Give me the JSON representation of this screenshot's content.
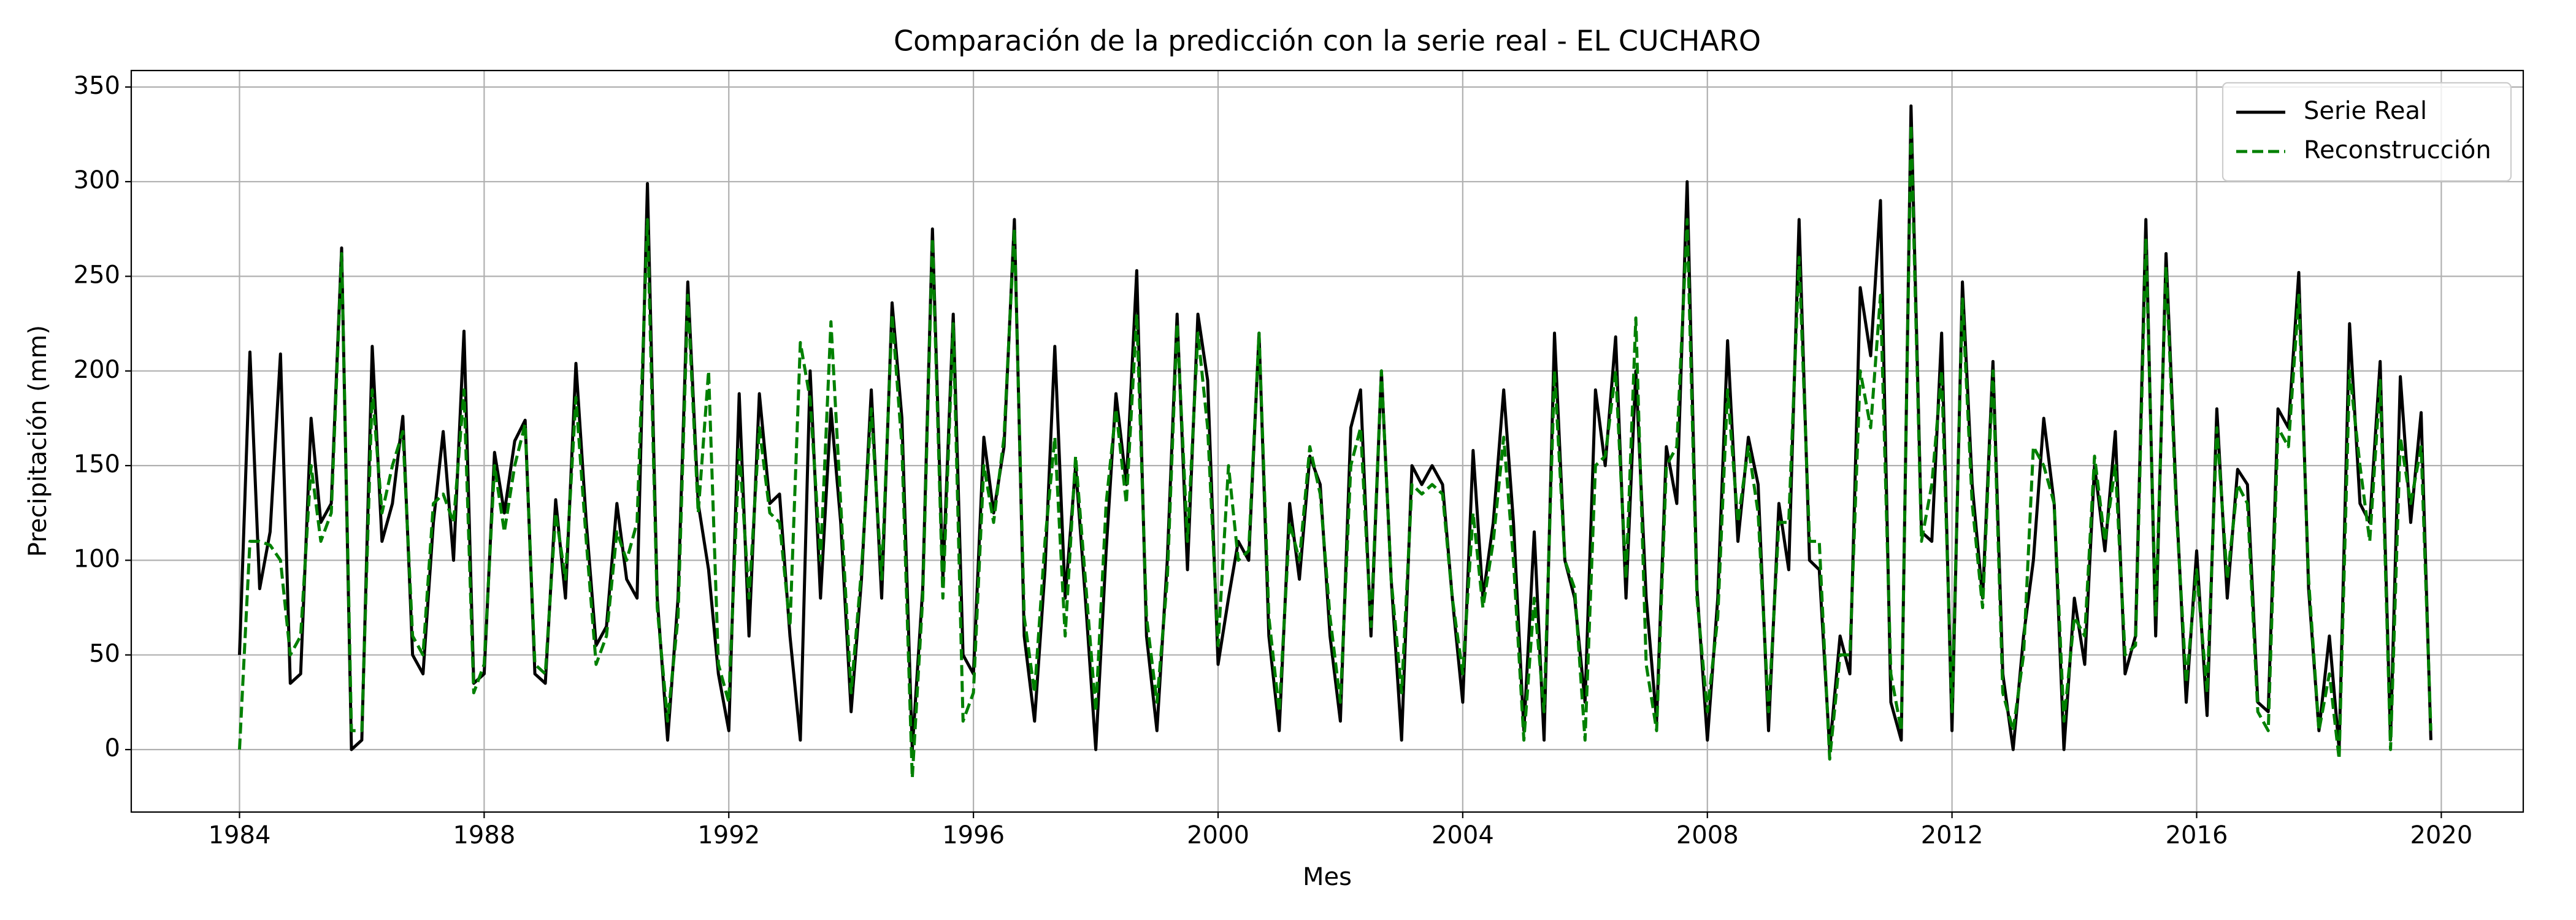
{
  "chart_data": {
    "type": "line",
    "title": "Comparación de la predicción con la serie real - EL CUCHARO",
    "x_label": "Mes",
    "y_label": "Precipitación (mm)",
    "xlim": [
      1982.23,
      2021.34
    ],
    "ylim": [
      -33,
      358.7
    ],
    "xticks": [
      1984,
      1988,
      1992,
      1996,
      2000,
      2004,
      2008,
      2012,
      2016,
      2020
    ],
    "yticks": [
      0,
      50,
      100,
      150,
      200,
      250,
      300,
      350
    ],
    "grid": true,
    "legend_loc": "upper right",
    "x": [
      1984,
      1984.17,
      1984.33,
      1984.5,
      1984.67,
      1984.83,
      1985,
      1985.17,
      1985.33,
      1985.5,
      1985.67,
      1985.83,
      1986,
      1986.17,
      1986.33,
      1986.5,
      1986.67,
      1986.83,
      1987,
      1987.17,
      1987.33,
      1987.5,
      1987.67,
      1987.83,
      1988,
      1988.17,
      1988.33,
      1988.5,
      1988.67,
      1988.83,
      1989,
      1989.17,
      1989.33,
      1989.5,
      1989.67,
      1989.83,
      1990,
      1990.17,
      1990.33,
      1990.5,
      1990.67,
      1990.83,
      1991,
      1991.17,
      1991.33,
      1991.5,
      1991.67,
      1991.83,
      1992,
      1992.17,
      1992.33,
      1992.5,
      1992.67,
      1992.83,
      1993,
      1993.17,
      1993.33,
      1993.5,
      1993.67,
      1993.83,
      1994,
      1994.17,
      1994.33,
      1994.5,
      1994.67,
      1994.83,
      1995,
      1995.17,
      1995.33,
      1995.5,
      1995.67,
      1995.83,
      1996,
      1996.17,
      1996.33,
      1996.5,
      1996.67,
      1996.83,
      1997,
      1997.17,
      1997.33,
      1997.5,
      1997.67,
      1997.83,
      1998,
      1998.17,
      1998.33,
      1998.5,
      1998.67,
      1998.83,
      1999,
      1999.17,
      1999.33,
      1999.5,
      1999.67,
      1999.83,
      2000,
      2000.17,
      2000.33,
      2000.5,
      2000.67,
      2000.83,
      2001,
      2001.17,
      2001.33,
      2001.5,
      2001.67,
      2001.83,
      2002,
      2002.17,
      2002.33,
      2002.5,
      2002.67,
      2002.83,
      2003,
      2003.17,
      2003.33,
      2003.5,
      2003.67,
      2003.83,
      2004,
      2004.17,
      2004.33,
      2004.5,
      2004.67,
      2004.83,
      2005,
      2005.17,
      2005.33,
      2005.5,
      2005.67,
      2005.83,
      2006,
      2006.17,
      2006.33,
      2006.5,
      2006.67,
      2006.83,
      2007,
      2007.17,
      2007.33,
      2007.5,
      2007.67,
      2007.83,
      2008,
      2008.17,
      2008.33,
      2008.5,
      2008.67,
      2008.83,
      2009,
      2009.17,
      2009.33,
      2009.5,
      2009.67,
      2009.83,
      2010,
      2010.17,
      2010.33,
      2010.5,
      2010.67,
      2010.83,
      2011,
      2011.17,
      2011.33,
      2011.5,
      2011.67,
      2011.83,
      2012,
      2012.17,
      2012.33,
      2012.5,
      2012.67,
      2012.83,
      2013,
      2013.17,
      2013.33,
      2013.5,
      2013.67,
      2013.83,
      2014,
      2014.17,
      2014.33,
      2014.5,
      2014.67,
      2014.83,
      2015,
      2015.17,
      2015.33,
      2015.5,
      2015.67,
      2015.83,
      2016,
      2016.17,
      2016.33,
      2016.5,
      2016.67,
      2016.83,
      2017,
      2017.17,
      2017.33,
      2017.5,
      2017.67,
      2017.83,
      2018,
      2018.17,
      2018.33,
      2018.5,
      2018.67,
      2018.83,
      2019,
      2019.17,
      2019.33,
      2019.5,
      2019.67,
      2019.83
    ],
    "series": [
      {
        "name": "Serie Real",
        "color": "#000000",
        "dashed": false,
        "values": [
          50,
          210,
          85,
          115,
          209,
          35,
          40,
          175,
          120,
          130,
          265,
          0,
          5,
          213,
          110,
          130,
          176,
          50,
          40,
          120,
          168,
          100,
          221,
          35,
          40,
          157,
          125,
          163,
          174,
          40,
          35,
          132,
          80,
          204,
          120,
          55,
          65,
          130,
          90,
          80,
          299,
          80,
          5,
          80,
          247,
          130,
          95,
          40,
          10,
          188,
          60,
          188,
          130,
          135,
          60,
          5,
          200,
          80,
          180,
          120,
          20,
          90,
          190,
          80,
          236,
          175,
          0,
          85,
          275,
          90,
          230,
          50,
          40,
          165,
          125,
          160,
          280,
          60,
          15,
          95,
          213,
          80,
          150,
          80,
          0,
          105,
          188,
          140,
          253,
          60,
          10,
          100,
          230,
          95,
          230,
          195,
          45,
          80,
          110,
          100,
          220,
          60,
          10,
          130,
          90,
          155,
          140,
          60,
          15,
          170,
          190,
          60,
          200,
          90,
          5,
          150,
          140,
          150,
          140,
          80,
          25,
          158,
          80,
          120,
          190,
          120,
          10,
          115,
          5,
          220,
          100,
          80,
          25,
          190,
          150,
          218,
          80,
          200,
          80,
          15,
          160,
          130,
          300,
          85,
          5,
          80,
          216,
          110,
          165,
          140,
          10,
          130,
          95,
          280,
          100,
          95,
          0,
          60,
          40,
          244,
          208,
          290,
          25,
          5,
          340,
          115,
          110,
          220,
          10,
          247,
          140,
          80,
          205,
          40,
          0,
          60,
          100,
          175,
          130,
          0,
          80,
          45,
          150,
          105,
          168,
          40,
          60,
          280,
          60,
          262,
          130,
          25,
          105,
          18,
          180,
          80,
          148,
          140,
          25,
          20,
          180,
          170,
          252,
          85,
          10,
          60,
          0,
          225,
          130,
          120,
          205,
          5,
          197,
          120,
          178,
          5
        ]
      },
      {
        "name": "Reconstrucción",
        "color": "#008000",
        "dashed": true,
        "values": [
          0,
          110,
          110,
          108,
          100,
          50,
          60,
          150,
          110,
          125,
          262,
          10,
          10,
          190,
          125,
          150,
          168,
          60,
          50,
          130,
          135,
          120,
          190,
          30,
          45,
          150,
          115,
          150,
          172,
          45,
          40,
          125,
          90,
          186,
          110,
          45,
          60,
          115,
          100,
          120,
          280,
          75,
          15,
          70,
          240,
          125,
          200,
          45,
          25,
          160,
          80,
          170,
          125,
          120,
          65,
          215,
          185,
          100,
          226,
          130,
          30,
          95,
          180,
          90,
          230,
          160,
          -15,
          80,
          270,
          80,
          225,
          15,
          30,
          150,
          120,
          165,
          275,
          70,
          30,
          110,
          165,
          60,
          155,
          90,
          20,
          130,
          180,
          130,
          230,
          70,
          25,
          90,
          225,
          110,
          220,
          170,
          55,
          150,
          100,
          105,
          220,
          70,
          20,
          120,
          100,
          160,
          135,
          70,
          25,
          150,
          170,
          65,
          200,
          90,
          30,
          140,
          135,
          140,
          135,
          80,
          40,
          125,
          75,
          110,
          165,
          100,
          5,
          80,
          20,
          200,
          100,
          85,
          5,
          150,
          155,
          200,
          90,
          228,
          45,
          10,
          150,
          160,
          280,
          80,
          20,
          70,
          190,
          120,
          160,
          125,
          20,
          120,
          120,
          260,
          110,
          110,
          -5,
          50,
          50,
          200,
          170,
          240,
          40,
          10,
          330,
          110,
          140,
          200,
          20,
          238,
          130,
          75,
          200,
          30,
          10,
          50,
          160,
          150,
          130,
          15,
          70,
          60,
          155,
          110,
          150,
          50,
          55,
          270,
          70,
          255,
          125,
          35,
          95,
          30,
          170,
          90,
          140,
          130,
          20,
          10,
          170,
          160,
          240,
          90,
          10,
          40,
          -5,
          200,
          150,
          110,
          195,
          0,
          165,
          130,
          160,
          10
        ]
      }
    ]
  }
}
